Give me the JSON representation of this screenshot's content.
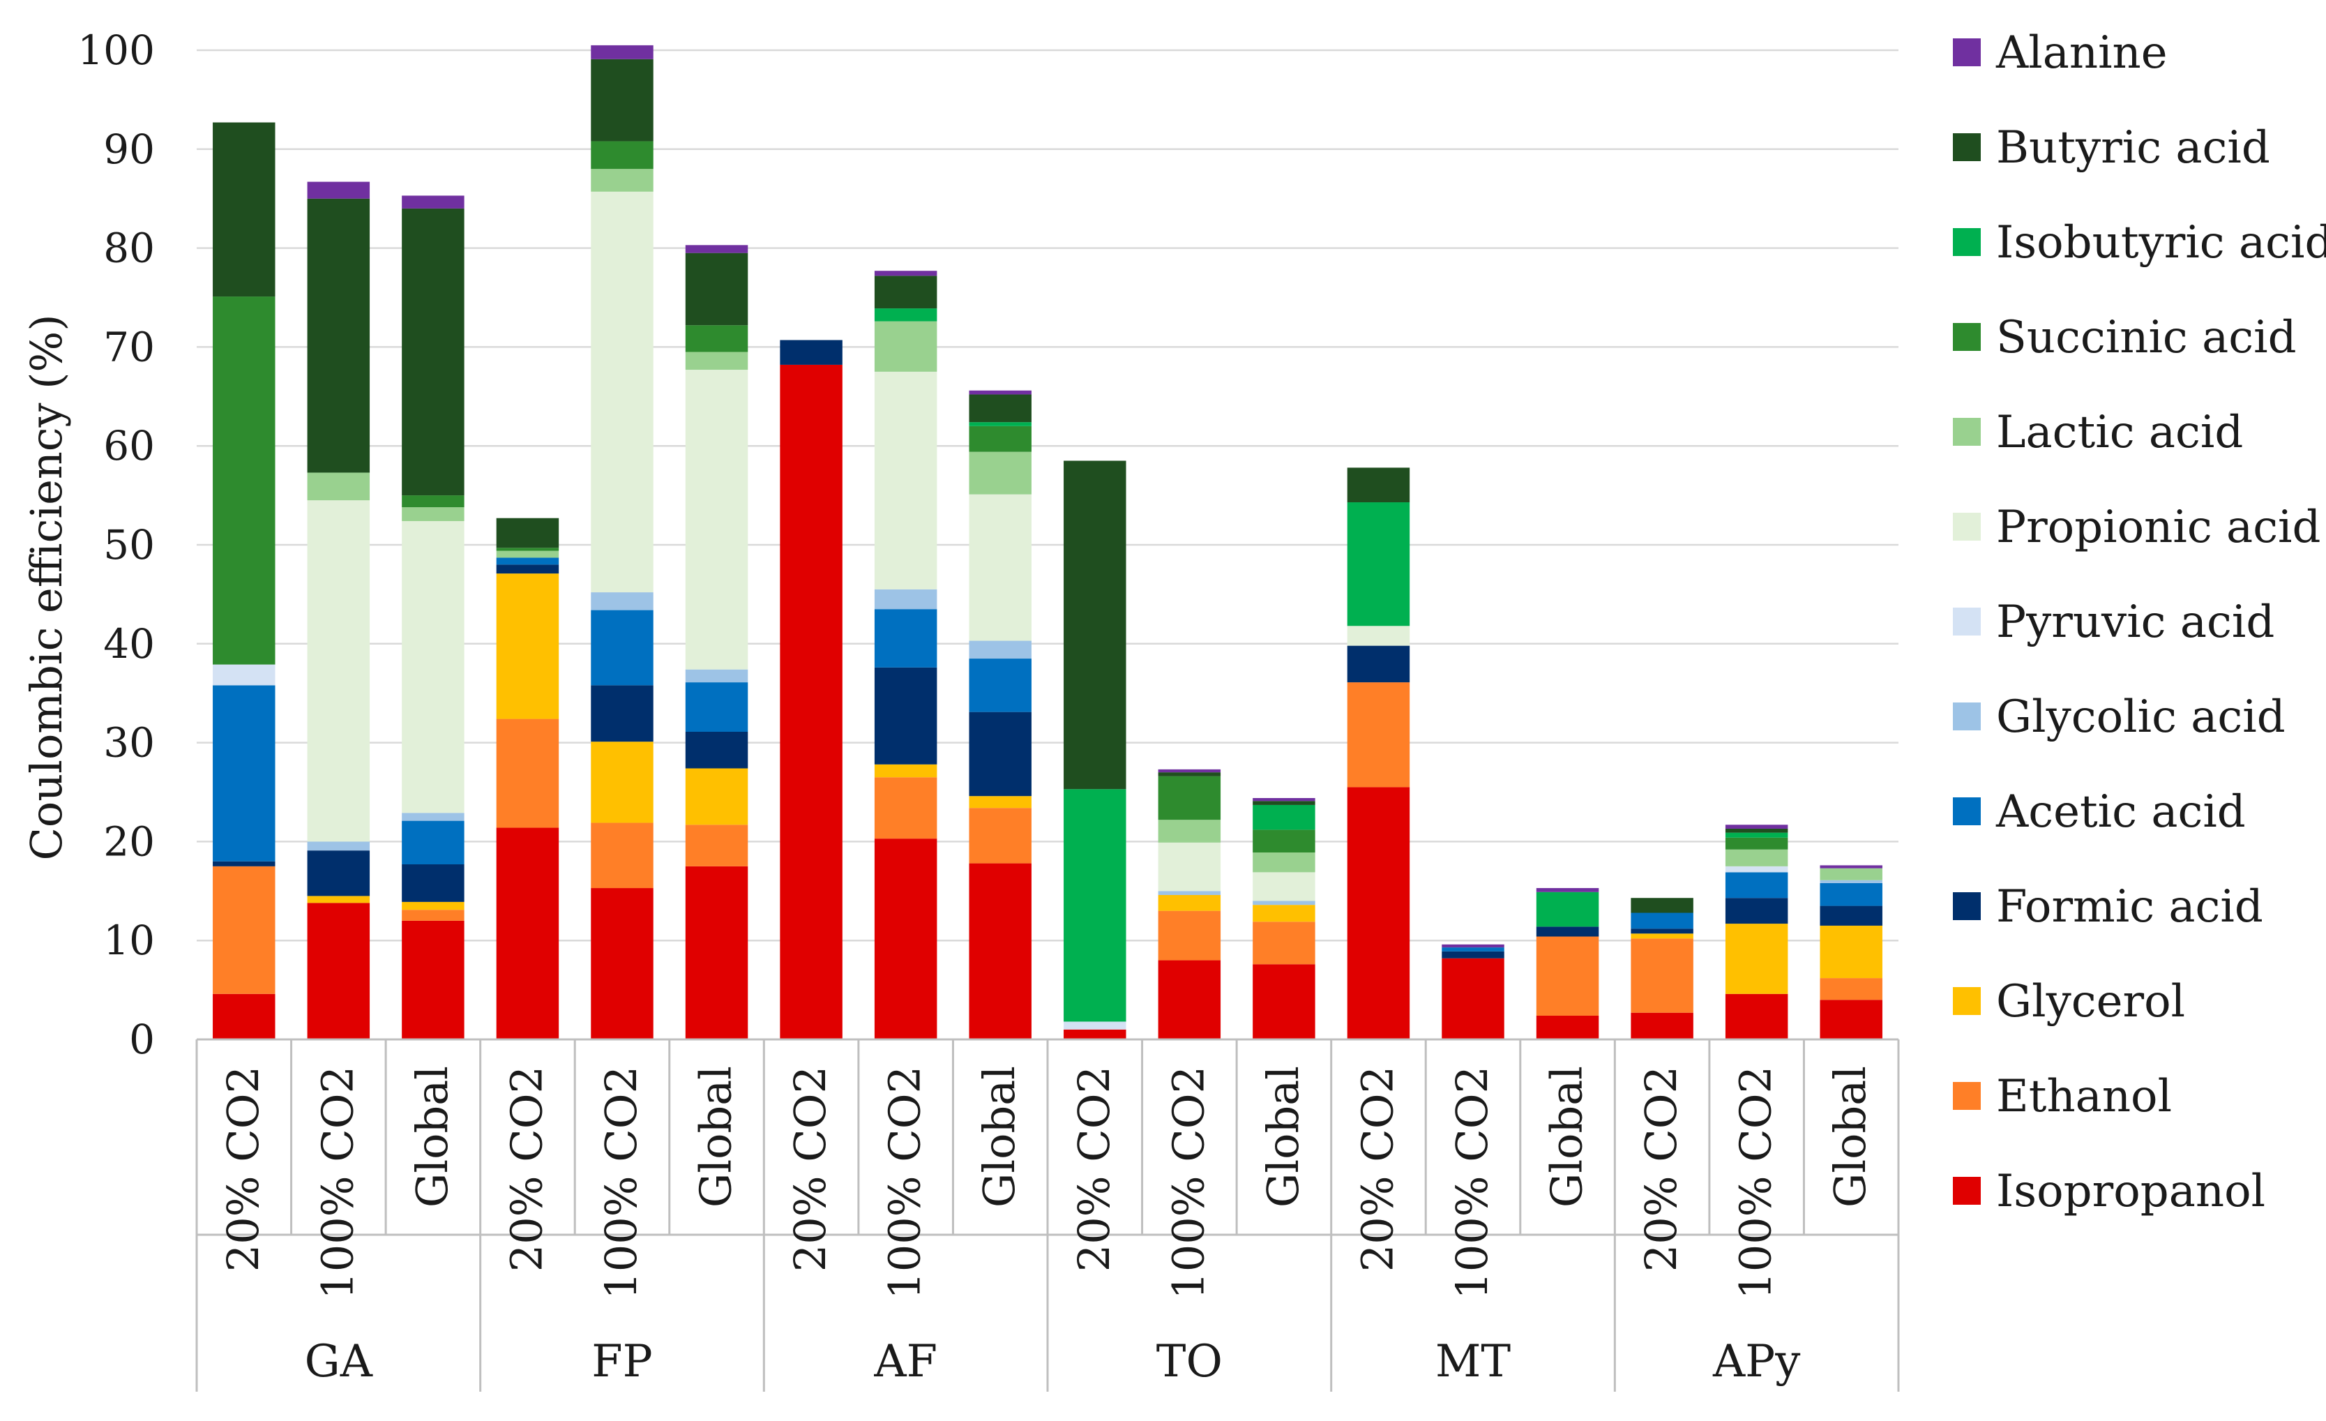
{
  "chart_data": {
    "type": "bar",
    "stacked": true,
    "title": "",
    "xlabel": "",
    "ylabel": "Coulombic efficiency (%)",
    "ylim": [
      0,
      100
    ],
    "yticks": [
      0,
      10,
      20,
      30,
      40,
      50,
      60,
      70,
      80,
      90,
      100
    ],
    "grid": true,
    "legend_position": "right",
    "groups": [
      {
        "name": "GA",
        "categories": [
          "20% CO2",
          "100% CO2",
          "Global"
        ]
      },
      {
        "name": "FP",
        "categories": [
          "20% CO2",
          "100% CO2",
          "Global"
        ]
      },
      {
        "name": "AF",
        "categories": [
          "20% CO2",
          "100% CO2",
          "Global"
        ]
      },
      {
        "name": "TO",
        "categories": [
          "20% CO2",
          "100% CO2",
          "Global"
        ]
      },
      {
        "name": "MT",
        "categories": [
          "20% CO2",
          "100% CO2",
          "Global"
        ]
      },
      {
        "name": "APy",
        "categories": [
          "20% CO2",
          "100% CO2",
          "Global"
        ]
      }
    ],
    "categories": [
      "GA 20% CO2",
      "GA 100% CO2",
      "GA Global",
      "FP 20% CO2",
      "FP 100% CO2",
      "FP Global",
      "AF 20% CO2",
      "AF 100% CO2",
      "AF Global",
      "TO 20% CO2",
      "TO 100% CO2",
      "TO Global",
      "MT 20% CO2",
      "MT 100% CO2",
      "MT Global",
      "APy 20% CO2",
      "APy 100% CO2",
      "APy Global"
    ],
    "series": [
      {
        "name": "Isopropanol",
        "color": "#e00000",
        "values": [
          4.6,
          13.8,
          12.0,
          21.4,
          15.3,
          17.5,
          68.2,
          20.3,
          17.8,
          1.0,
          8.0,
          7.6,
          25.5,
          8.2,
          2.4,
          2.7,
          4.6,
          4.0
        ]
      },
      {
        "name": "Ethanol",
        "color": "#ff7f27",
        "values": [
          12.9,
          0.0,
          1.1,
          11.0,
          6.6,
          4.2,
          0.0,
          6.2,
          5.6,
          0.0,
          5.0,
          4.3,
          10.6,
          0.0,
          8.0,
          7.5,
          0.0,
          2.2
        ]
      },
      {
        "name": "Glycerol",
        "color": "#ffc000",
        "values": [
          0.0,
          0.7,
          0.8,
          14.7,
          8.2,
          5.7,
          0.0,
          1.3,
          1.2,
          0.0,
          1.6,
          1.7,
          0.0,
          0.0,
          0.0,
          0.5,
          7.1,
          5.3
        ]
      },
      {
        "name": "Formic acid",
        "color": "#002f6c",
        "values": [
          0.5,
          4.6,
          3.8,
          0.9,
          5.7,
          3.7,
          2.5,
          9.8,
          8.5,
          0.0,
          0.0,
          0.0,
          3.7,
          0.7,
          1.0,
          0.5,
          2.6,
          2.0
        ]
      },
      {
        "name": "Acetic acid",
        "color": "#0070c0",
        "values": [
          17.8,
          0.0,
          4.4,
          0.7,
          7.6,
          5.0,
          0.0,
          5.9,
          5.4,
          0.0,
          0.0,
          0.0,
          0.0,
          0.4,
          0.0,
          1.6,
          2.6,
          2.3
        ]
      },
      {
        "name": "Glycolic acid",
        "color": "#9dc3e6",
        "values": [
          0.0,
          0.9,
          0.8,
          0.0,
          1.8,
          1.3,
          0.0,
          2.0,
          1.8,
          0.0,
          0.4,
          0.4,
          0.0,
          0.0,
          0.0,
          0.0,
          0.0,
          0.3
        ]
      },
      {
        "name": "Pyruvic acid",
        "color": "#d4e2f4",
        "values": [
          2.1,
          0.0,
          0.0,
          0.0,
          0.0,
          0.0,
          0.0,
          0.0,
          0.0,
          0.8,
          0.0,
          0.0,
          0.0,
          0.0,
          0.0,
          0.0,
          0.6,
          0.0
        ]
      },
      {
        "name": "Propionic acid",
        "color": "#e2f0d9",
        "values": [
          0.0,
          34.5,
          29.5,
          0.0,
          40.5,
          30.3,
          0.0,
          22.0,
          14.8,
          0.0,
          4.9,
          2.9,
          2.0,
          0.0,
          0.0,
          0.0,
          0.0,
          0.0
        ]
      },
      {
        "name": "Lactic acid",
        "color": "#99d18f",
        "values": [
          0.0,
          2.8,
          1.4,
          0.7,
          2.3,
          1.8,
          0.0,
          5.1,
          4.3,
          0.0,
          2.3,
          2.0,
          0.0,
          0.0,
          0.0,
          0.0,
          1.7,
          1.2
        ]
      },
      {
        "name": "Succinic acid",
        "color": "#2e8b2e",
        "values": [
          37.2,
          0.0,
          1.2,
          0.3,
          2.8,
          2.7,
          0.0,
          0.0,
          2.6,
          0.0,
          4.4,
          2.3,
          0.0,
          0.0,
          0.0,
          0.0,
          1.2,
          0.0
        ]
      },
      {
        "name": "Isobutyric acid",
        "color": "#00b050",
        "values": [
          0.0,
          0.0,
          0.0,
          0.0,
          0.0,
          0.0,
          0.0,
          1.3,
          0.4,
          23.5,
          0.0,
          2.5,
          12.5,
          0.0,
          3.5,
          0.0,
          0.5,
          0.0
        ]
      },
      {
        "name": "Butyric acid",
        "color": "#1f4e1f",
        "values": [
          17.6,
          27.7,
          29.0,
          3.0,
          8.3,
          7.3,
          0.0,
          3.3,
          2.8,
          33.2,
          0.4,
          0.4,
          3.5,
          0.0,
          0.0,
          1.5,
          0.4,
          0.0
        ]
      },
      {
        "name": "Alanine",
        "color": "#7030a0",
        "values": [
          0.0,
          1.7,
          1.3,
          0.0,
          1.4,
          0.8,
          0.0,
          0.5,
          0.4,
          0.0,
          0.3,
          0.3,
          0.0,
          0.3,
          0.4,
          0.0,
          0.4,
          0.3
        ]
      }
    ],
    "legend_order": [
      "Alanine",
      "Butyric acid",
      "Isobutyric acid",
      "Succinic acid",
      "Lactic acid",
      "Propionic acid",
      "Pyruvic acid",
      "Glycolic acid",
      "Acetic acid",
      "Formic acid",
      "Glycerol",
      "Ethanol",
      "Isopropanol"
    ],
    "axis_color": "#bfbfbf",
    "grid_color": "#d9d9d9"
  }
}
